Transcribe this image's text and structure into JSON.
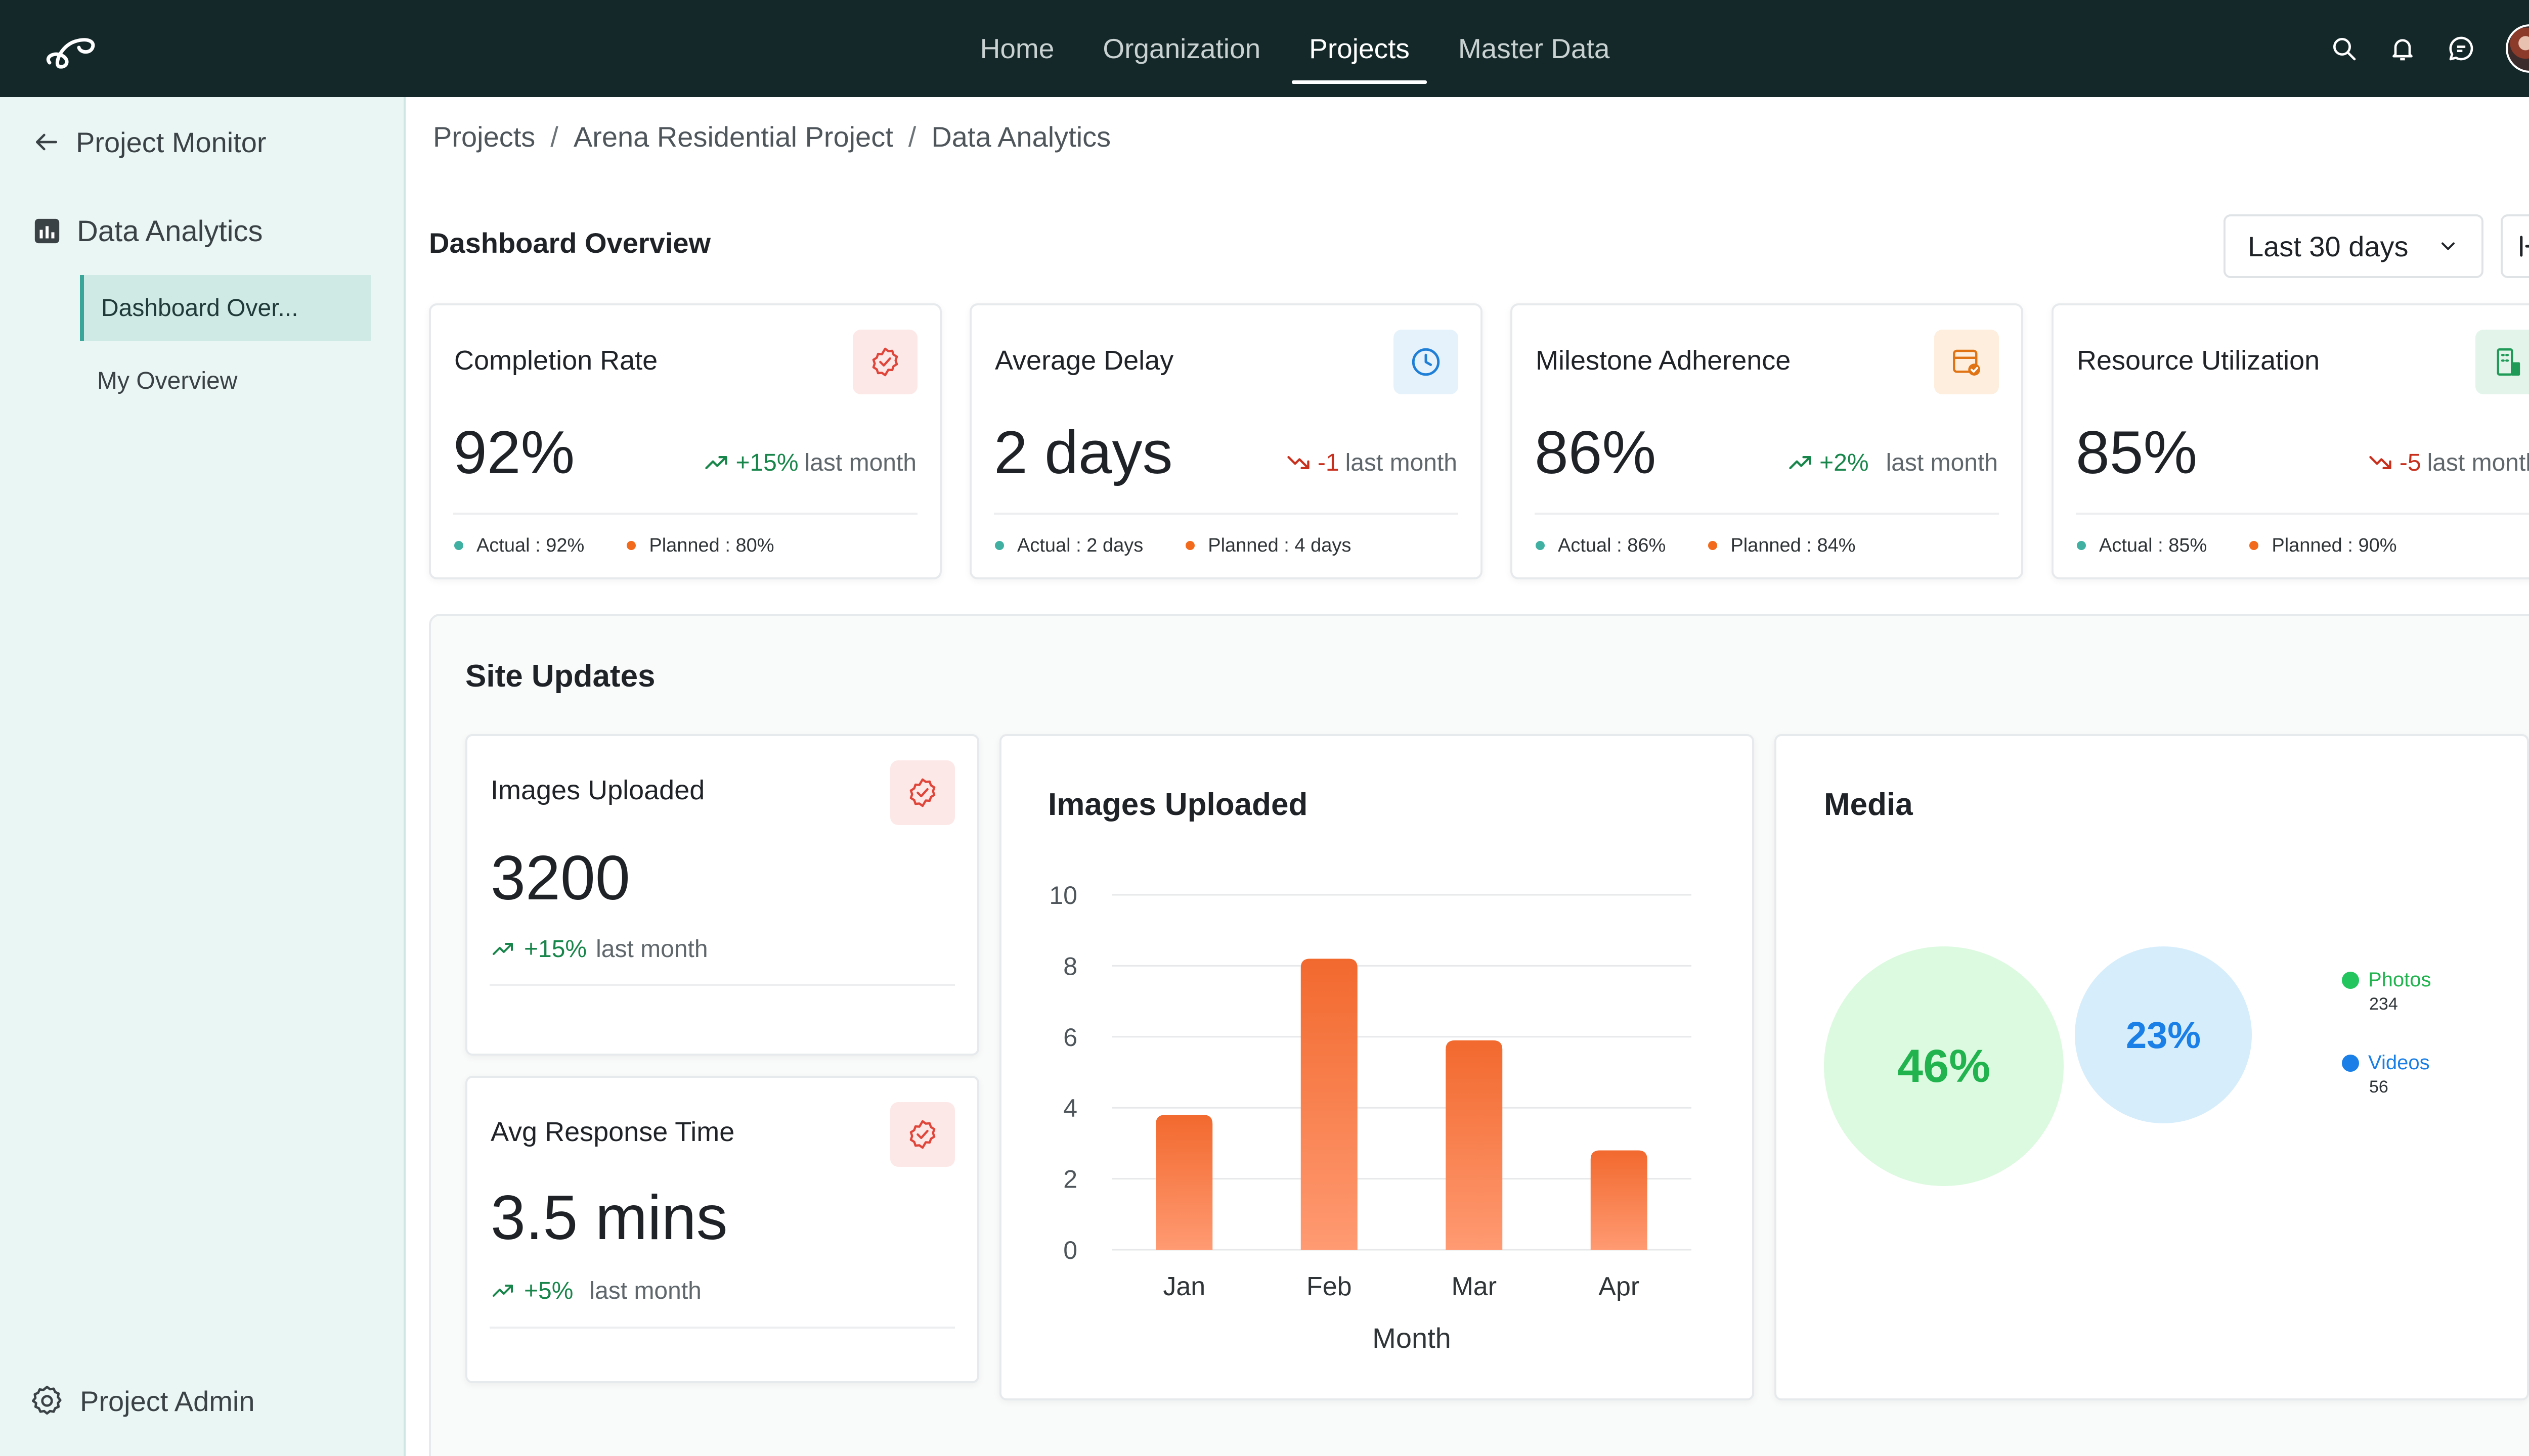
{
  "nav": {
    "items": [
      "Home",
      "Organization",
      "Projects",
      "Master Data"
    ],
    "active": "Projects"
  },
  "topbar_icons": [
    "search-icon",
    "bell-icon",
    "chat-icon",
    "avatar"
  ],
  "sidebar": {
    "back_label": "Project Monitor",
    "section_label": "Data Analytics",
    "sub_items": [
      "Dashboard Over...",
      "My Overview"
    ],
    "active_sub": "Dashboard Over...",
    "admin_label": "Project Admin"
  },
  "breadcrumb": [
    "Projects",
    "Arena Residential Project",
    "Data Analytics"
  ],
  "page": {
    "title": "Dashboard Overview",
    "range": "Last 30 days"
  },
  "kpis": [
    {
      "title": "Completion Rate",
      "value": "92%",
      "trend": "+15%",
      "trend_dir": "up",
      "trend_suffix": "last month",
      "actual": "Actual : 92%",
      "planned": "Planned : 80%",
      "icon": "badge-check-icon"
    },
    {
      "title": "Average Delay",
      "value": "2 days",
      "trend": "-1",
      "trend_dir": "down",
      "trend_suffix": "last month",
      "actual": "Actual : 2 days",
      "planned": "Planned : 4 days",
      "icon": "clock-icon"
    },
    {
      "title": "Milestone Adherence",
      "value": "86%",
      "trend": "+2%",
      "trend_dir": "up",
      "trend_suffix": "last month",
      "actual": "Actual : 86%",
      "planned": "Planned : 84%",
      "icon": "calendar-check-icon"
    },
    {
      "title": "Resource Utilization",
      "value": "85%",
      "trend": "-5",
      "trend_dir": "down",
      "trend_suffix": "last month",
      "actual": "Actual : 85%",
      "planned": "Planned : 90%",
      "icon": "building-icon"
    }
  ],
  "colors": {
    "actual_dot": "#3fb0a2",
    "planned_dot": "#f26a1b",
    "trend_up": "#18864a",
    "trend_down": "#c8301e",
    "bar_top": "#f2692e",
    "bar_bottom": "#ff9a72",
    "photos": "#22c55e",
    "videos": "#1a7fe6"
  },
  "site_updates": {
    "title": "Site Updates",
    "images_card": {
      "title": "Images Uploaded",
      "value": "3200",
      "trend": "+15%",
      "trend_suffix": "last month"
    },
    "response_card": {
      "title": "Avg Response Time",
      "value": "3.5 mins",
      "trend": "+5%",
      "trend_suffix": "last month"
    }
  },
  "chart_data": {
    "type": "bar",
    "title": "Images Uploaded",
    "categories": [
      "Jan",
      "Feb",
      "Mar",
      "Apr"
    ],
    "values": [
      3.8,
      8.2,
      5.9,
      2.8
    ],
    "xlabel": "Month",
    "ylabel": "",
    "ylim": [
      0,
      10
    ],
    "yticks": [
      0,
      2,
      4,
      6,
      8,
      10
    ],
    "grid": true
  },
  "media": {
    "title": "Media",
    "photos": {
      "label": "Photos",
      "count": "234",
      "percent": "46%",
      "share": 0.46
    },
    "videos": {
      "label": "Videos",
      "count": "56",
      "percent": "23%",
      "share": 0.23
    }
  }
}
